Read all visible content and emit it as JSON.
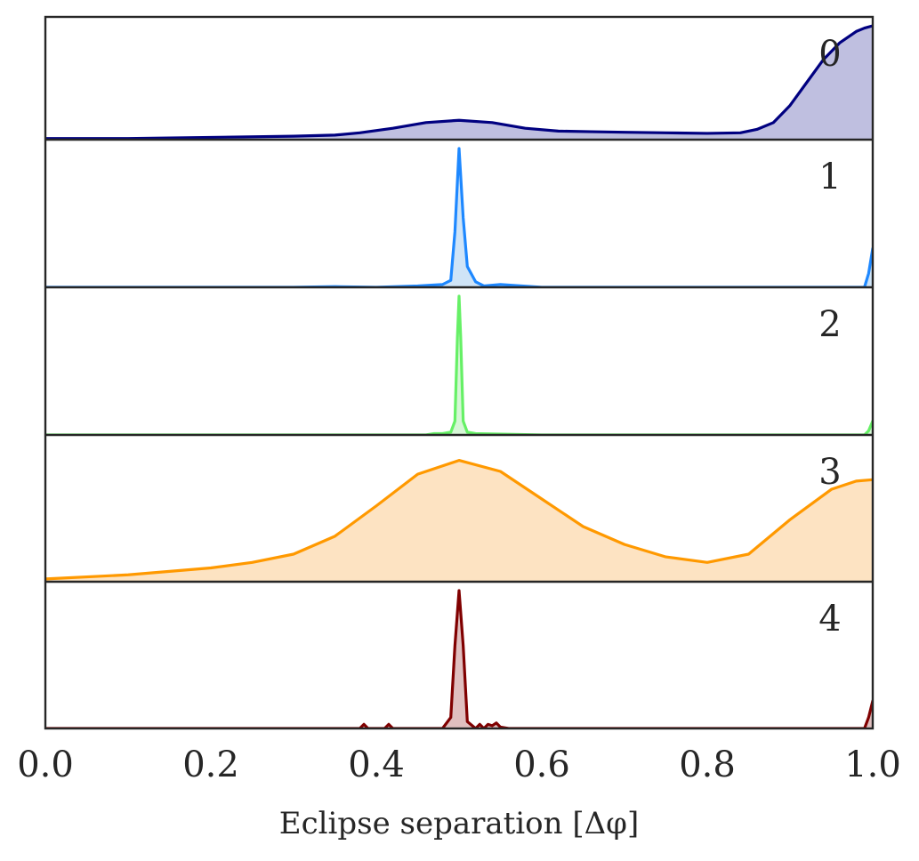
{
  "chart_data": {
    "type": "area",
    "xlabel": "Eclipse separation [Δφ]",
    "xlim": [
      0.0,
      1.0
    ],
    "xticks": [
      0.0,
      0.2,
      0.4,
      0.6,
      0.8,
      1.0
    ],
    "xtick_labels": [
      "0.0",
      "0.2",
      "0.4",
      "0.6",
      "0.8",
      "1.0"
    ],
    "yticks": "none",
    "grid": false,
    "panels": [
      {
        "label": "0",
        "color": "#000080",
        "fill": "#bfbfe0",
        "ylim": [
          0,
          1.0
        ],
        "x": [
          0.0,
          0.1,
          0.2,
          0.3,
          0.35,
          0.38,
          0.42,
          0.46,
          0.5,
          0.54,
          0.58,
          0.62,
          0.66,
          0.7,
          0.75,
          0.8,
          0.84,
          0.86,
          0.88,
          0.9,
          0.92,
          0.94,
          0.96,
          0.98,
          0.99,
          1.0
        ],
        "y": [
          0.01,
          0.01,
          0.02,
          0.03,
          0.04,
          0.06,
          0.1,
          0.15,
          0.17,
          0.15,
          0.1,
          0.075,
          0.07,
          0.065,
          0.06,
          0.055,
          0.06,
          0.09,
          0.15,
          0.3,
          0.5,
          0.7,
          0.85,
          0.95,
          0.98,
          1.0
        ]
      },
      {
        "label": "1",
        "color": "#1e88ff",
        "fill": "#cfe4f7",
        "ylim": [
          0,
          1.0
        ],
        "x": [
          0.0,
          0.1,
          0.2,
          0.3,
          0.35,
          0.4,
          0.45,
          0.48,
          0.49,
          0.495,
          0.5,
          0.505,
          0.51,
          0.52,
          0.53,
          0.55,
          0.6,
          0.7,
          0.8,
          0.9,
          0.99,
          0.995,
          1.0
        ],
        "y": [
          0.0,
          0.0,
          0.0,
          0.0,
          0.005,
          0.0,
          0.01,
          0.02,
          0.05,
          0.4,
          1.0,
          0.5,
          0.15,
          0.04,
          0.01,
          0.02,
          0.0,
          0.0,
          0.0,
          0.0,
          0.0,
          0.1,
          0.28
        ]
      },
      {
        "label": "2",
        "color": "#66f066",
        "fill": "#d6f7d6",
        "ylim": [
          0,
          1.0
        ],
        "x": [
          0.0,
          0.46,
          0.47,
          0.48,
          0.49,
          0.495,
          0.498,
          0.5,
          0.502,
          0.505,
          0.51,
          0.52,
          0.6,
          0.7,
          0.8,
          0.9,
          0.99,
          0.995,
          1.0
        ],
        "y": [
          0.0,
          0.0,
          0.01,
          0.01,
          0.02,
          0.1,
          0.7,
          1.0,
          0.7,
          0.1,
          0.02,
          0.01,
          0.0,
          0.0,
          0.0,
          0.0,
          0.0,
          0.03,
          0.1
        ]
      },
      {
        "label": "3",
        "color": "#ff9900",
        "fill": "#fde3c2",
        "ylim": [
          0,
          1.0
        ],
        "x": [
          0.0,
          0.1,
          0.2,
          0.25,
          0.3,
          0.35,
          0.4,
          0.45,
          0.5,
          0.55,
          0.6,
          0.65,
          0.7,
          0.75,
          0.8,
          0.85,
          0.9,
          0.95,
          0.98,
          1.0
        ],
        "y": [
          0.02,
          0.05,
          0.1,
          0.14,
          0.2,
          0.33,
          0.55,
          0.78,
          0.88,
          0.8,
          0.6,
          0.4,
          0.27,
          0.18,
          0.14,
          0.2,
          0.45,
          0.67,
          0.73,
          0.74
        ]
      },
      {
        "label": "4",
        "color": "#800000",
        "fill": "#e0bfbf",
        "ylim": [
          0,
          1.0
        ],
        "x": [
          0.0,
          0.3,
          0.38,
          0.385,
          0.39,
          0.41,
          0.415,
          0.42,
          0.48,
          0.49,
          0.495,
          0.5,
          0.505,
          0.51,
          0.52,
          0.525,
          0.53,
          0.535,
          0.54,
          0.545,
          0.55,
          0.56,
          0.6,
          0.7,
          0.8,
          0.9,
          0.99,
          0.995,
          1.0
        ],
        "y": [
          0.0,
          0.0,
          0.0,
          0.03,
          0.0,
          0.0,
          0.03,
          0.0,
          0.0,
          0.08,
          0.6,
          1.0,
          0.6,
          0.05,
          0.0,
          0.03,
          0.0,
          0.03,
          0.02,
          0.04,
          0.01,
          0.0,
          0.0,
          0.0,
          0.0,
          0.0,
          0.0,
          0.08,
          0.2
        ]
      }
    ]
  }
}
